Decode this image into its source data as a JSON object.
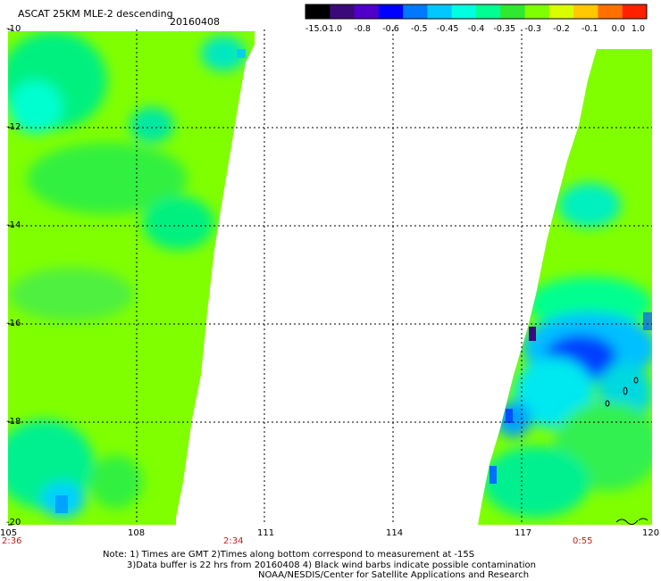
{
  "title": "ASCAT 25KM MLE-2 descending",
  "date": "20160408",
  "colorbar": {
    "labels": [
      "-15.0",
      "-1.0",
      "-0.8",
      "-0.6",
      "-0.5",
      "-0.45",
      "-0.4",
      "-0.35",
      "-0.3",
      "-0.2",
      "-0.1",
      "0.0",
      "1.0"
    ],
    "colors": [
      "#000000",
      "#3a0a7a",
      "#5000c8",
      "#0000ff",
      "#0078ff",
      "#00c8ff",
      "#00ffe0",
      "#00ff90",
      "#30e830",
      "#80ff00",
      "#d8ff00",
      "#ffc800",
      "#ff7000",
      "#ff2000"
    ]
  },
  "lat_labels": [
    "-10",
    "-12",
    "-14",
    "-16",
    "-18",
    "-20"
  ],
  "lon_labels": [
    "105",
    "108",
    "111",
    "114",
    "117",
    "120"
  ],
  "time_labels": [
    "2:36",
    "2:34",
    "0:55"
  ],
  "notes": [
    "Note: 1) Times are GMT 2)Times along bottom correspond to measurement at -15S",
    "3)Data buffer is 22 hrs from 20160408 4) Black wind barbs indicate possible contamination",
    "NOAA/NESDIS/Center for Satellite Applications and Research"
  ],
  "chart_data": {
    "type": "heatmap",
    "title": "ASCAT 25KM MLE-2 descending",
    "date": "20160408",
    "xlabel": "",
    "ylabel": "",
    "xlim": [
      105,
      120
    ],
    "ylim": [
      -20,
      -10
    ],
    "x_ticks": [
      105,
      108,
      111,
      114,
      117,
      120
    ],
    "y_ticks": [
      -10,
      -12,
      -14,
      -16,
      -18,
      -20
    ],
    "grid": true,
    "colorbar_labels": [
      "-15.0",
      "-1.0",
      "-0.8",
      "-0.6",
      "-0.5",
      "-0.45",
      "-0.4",
      "-0.35",
      "-0.3",
      "-0.2",
      "-0.1",
      "0.0",
      "1.0"
    ],
    "swaths": [
      {
        "lon_top": [
          105,
          110.6
        ],
        "lon_bottom": [
          105,
          108.8
        ],
        "lat": [
          -10,
          -20
        ],
        "dominant_value": -0.3
      },
      {
        "lon_top": [
          118.6,
          120
        ],
        "lon_bottom": [
          116.0,
          120
        ],
        "lat": [
          -10.5,
          -20
        ],
        "dominant_value": -0.3,
        "min_region_value": -0.6
      }
    ]
  }
}
